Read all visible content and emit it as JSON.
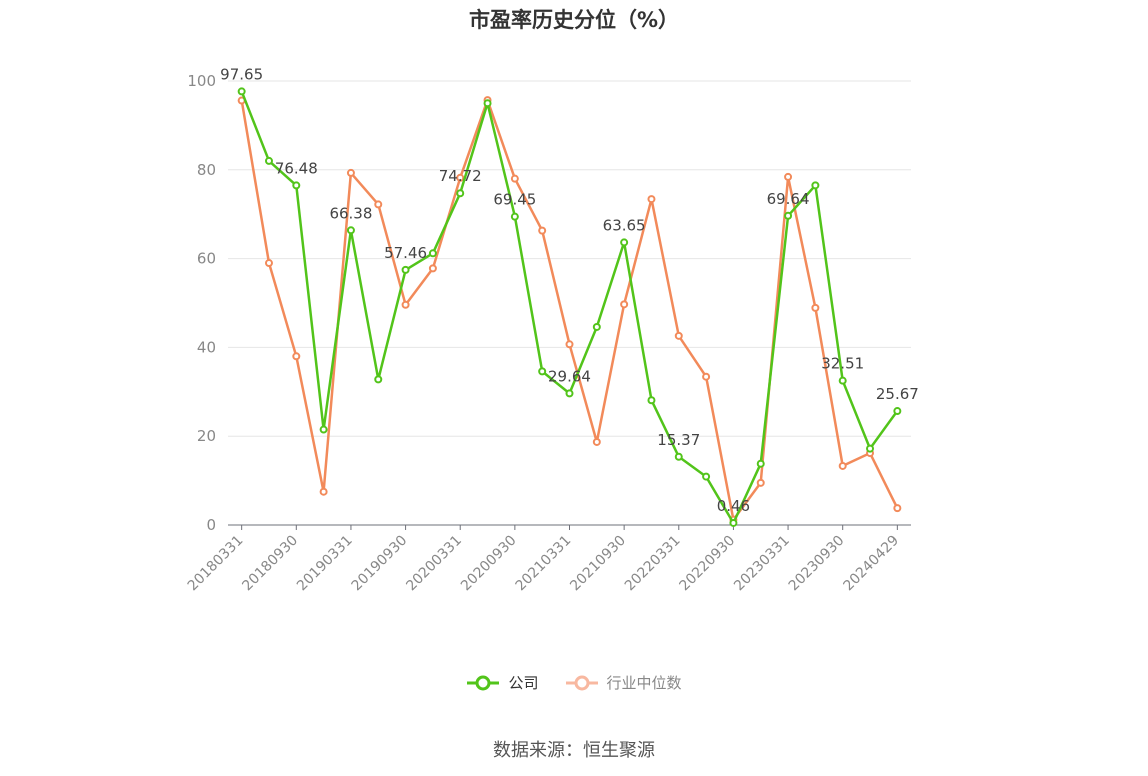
{
  "title": "市盈率历史分位（%）",
  "source": "数据来源：恒生聚源",
  "colors": {
    "company": "#52c41a",
    "industry": "#f28a5a",
    "industry_legend": "#f8b8a0",
    "axis": "#888888",
    "grid": "#e6e6e6",
    "label": "#444444"
  },
  "chart_data": {
    "type": "line",
    "ylim": [
      0,
      100
    ],
    "yticks": [
      0,
      20,
      40,
      60,
      80,
      100
    ],
    "grid": true,
    "legend_position": "bottom",
    "x": [
      "20180331",
      "20180630",
      "20180930",
      "20181231",
      "20190331",
      "20190630",
      "20190930",
      "20191231",
      "20200331",
      "20200630",
      "20200930",
      "20201231",
      "20210331",
      "20210630",
      "20210930",
      "20211231",
      "20220331",
      "20220630",
      "20220930",
      "20221231",
      "20230331",
      "20230630",
      "20230930",
      "20231231",
      "20240429"
    ],
    "xtick_labels": [
      "20180331",
      "20180930",
      "20190331",
      "20190930",
      "20200331",
      "20200930",
      "20210331",
      "20210930",
      "20220331",
      "20220930",
      "20230331",
      "20230930",
      "20240429"
    ],
    "series": [
      {
        "name": "公司",
        "values": [
          97.65,
          82.0,
          76.48,
          21.5,
          66.38,
          32.8,
          57.46,
          61.2,
          74.72,
          95.0,
          69.45,
          34.6,
          29.64,
          44.6,
          63.65,
          28.1,
          15.37,
          10.9,
          0.46,
          13.8,
          69.64,
          76.5,
          32.51,
          17.2,
          25.67
        ]
      },
      {
        "name": "行业中位数",
        "values": [
          95.6,
          59.0,
          38.0,
          7.5,
          79.3,
          72.2,
          49.6,
          57.8,
          78.2,
          95.7,
          78.0,
          66.3,
          40.7,
          18.7,
          49.7,
          73.4,
          42.6,
          33.4,
          1.2,
          9.5,
          78.4,
          48.9,
          13.3,
          16.2,
          3.8
        ]
      }
    ],
    "data_labels": [
      {
        "index": 0,
        "text": "97.65"
      },
      {
        "index": 2,
        "text": "76.48"
      },
      {
        "index": 4,
        "text": "66.38"
      },
      {
        "index": 6,
        "text": "57.46"
      },
      {
        "index": 8,
        "text": "74.72"
      },
      {
        "index": 10,
        "text": "69.45"
      },
      {
        "index": 12,
        "text": "29.64"
      },
      {
        "index": 14,
        "text": "63.65"
      },
      {
        "index": 16,
        "text": "15.37"
      },
      {
        "index": 18,
        "text": "0.46"
      },
      {
        "index": 20,
        "text": "69.64"
      },
      {
        "index": 22,
        "text": "32.51"
      },
      {
        "index": 24,
        "text": "25.67"
      }
    ]
  }
}
